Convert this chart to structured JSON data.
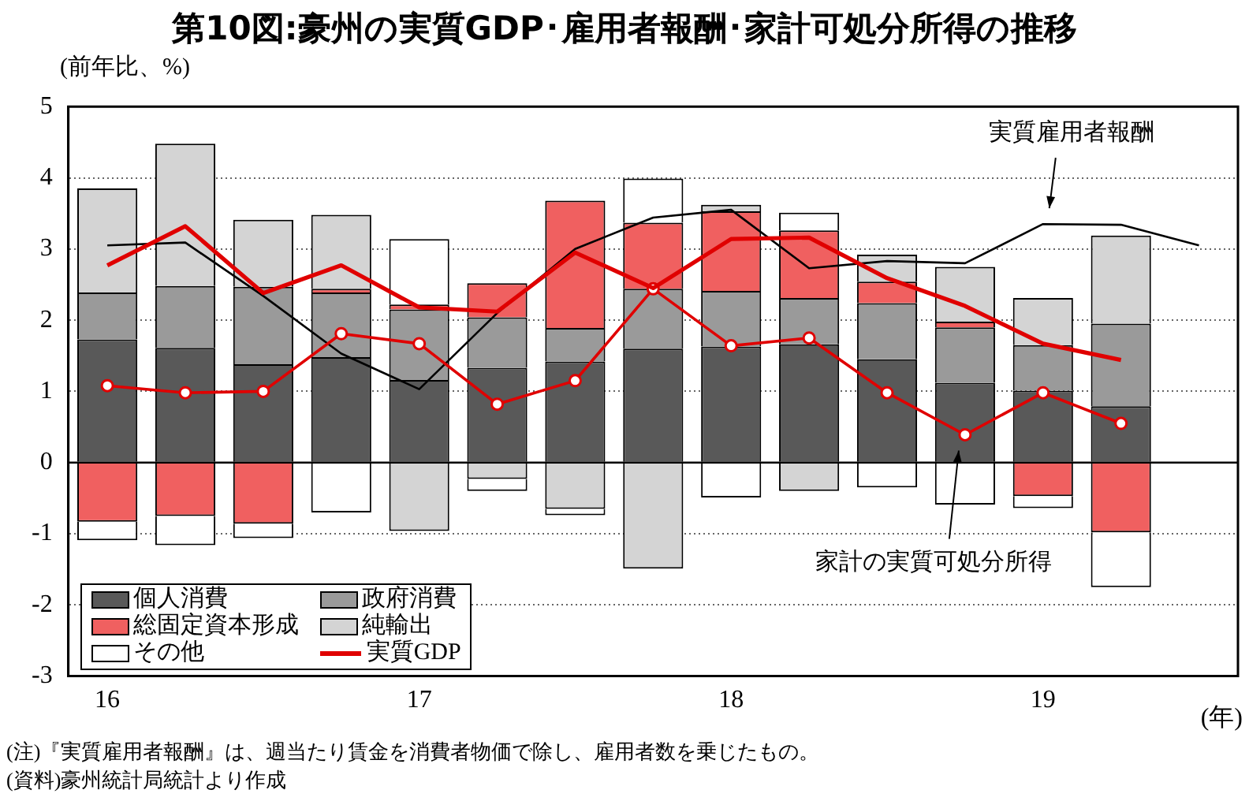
{
  "chart_data": {
    "type": "bar",
    "title": "第10図:豪州の実質GDP･雇用者報酬･家計可処分所得の推移",
    "ylabel": "(前年比、%)",
    "xlabel": "(年)",
    "annotations": [
      "(注)『実質雇用者報酬』は、週当たり賃金を消費者物価で除し、雇用者数を乗じたもの。",
      "(資料)豪州統計局統計より作成"
    ],
    "categories": [
      "16",
      null,
      null,
      null,
      "17",
      null,
      null,
      null,
      "18",
      null,
      null,
      null,
      "19",
      null,
      null
    ],
    "stacked": true,
    "ylim": [
      -3,
      5
    ],
    "yticks": [
      -3,
      -2,
      -1,
      0,
      1,
      2,
      3,
      4,
      5
    ],
    "grid": "y",
    "legend": "bottom left",
    "series": [
      {
        "name": "個人消費",
        "color": "#595959",
        "values": [
          1.73,
          1.61,
          1.38,
          1.48,
          1.16,
          1.33,
          1.42,
          1.6,
          1.63,
          1.66,
          1.45,
          1.12,
          1.01,
          0.79,
          null
        ]
      },
      {
        "name": "政府消費",
        "color": "#9a9a9a",
        "values": [
          0.66,
          0.87,
          1.09,
          0.91,
          0.99,
          0.71,
          0.47,
          0.84,
          0.78,
          0.65,
          0.79,
          0.78,
          0.64,
          1.16,
          null
        ]
      },
      {
        "name": "総固定資本形成",
        "color": "#f06060",
        "values": [
          -0.83,
          -0.75,
          -0.86,
          0.05,
          0.07,
          0.48,
          1.79,
          0.93,
          1.12,
          0.95,
          0.3,
          0.08,
          -0.47,
          -0.98,
          null
        ]
      },
      {
        "name": "純輸出",
        "color": "#d4d4d4",
        "values": [
          1.46,
          2.0,
          0.94,
          1.04,
          -0.96,
          -0.23,
          -0.65,
          -1.49,
          0.09,
          -0.4,
          0.38,
          0.77,
          0.66,
          1.24,
          null
        ]
      },
      {
        "name": "その他",
        "color": "#ffffff",
        "values": [
          -0.26,
          -0.41,
          -0.2,
          -0.7,
          0.92,
          -0.17,
          -0.09,
          0.62,
          -0.49,
          0.25,
          -0.35,
          -0.59,
          -0.17,
          -0.77,
          null
        ]
      },
      {
        "name": "実質GDP",
        "type": "line",
        "color": "#e00000",
        "line_style": "solid",
        "marker": "none",
        "values": [
          2.77,
          3.32,
          2.38,
          2.77,
          2.18,
          2.12,
          2.95,
          2.45,
          3.14,
          3.16,
          2.59,
          2.2,
          1.67,
          1.44,
          null
        ]
      },
      {
        "name": "家計の実質可処分所得",
        "type": "line",
        "color": "#e00000",
        "line_style": "solid",
        "marker": "circle",
        "values": [
          1.08,
          0.98,
          1.0,
          1.81,
          1.67,
          0.82,
          1.15,
          2.44,
          1.64,
          1.75,
          0.98,
          0.39,
          0.98,
          0.55,
          null
        ]
      },
      {
        "name": "実質雇用者報酬",
        "type": "line",
        "color": "#000000",
        "line_style": "solid",
        "marker": "none",
        "values": [
          3.05,
          3.09,
          2.34,
          1.53,
          1.03,
          2.1,
          3.0,
          3.44,
          3.55,
          2.73,
          2.83,
          2.8,
          3.35,
          3.34,
          3.05
        ]
      }
    ]
  }
}
